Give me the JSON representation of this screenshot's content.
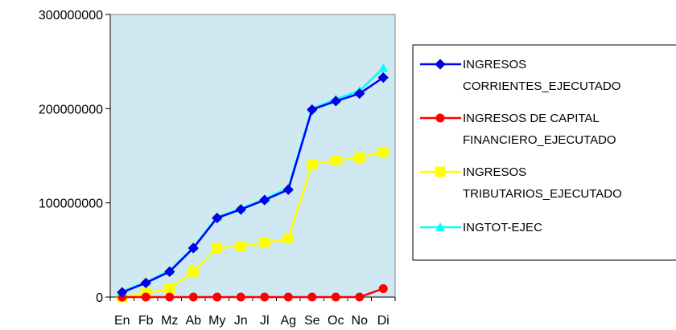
{
  "chart_data": {
    "type": "line",
    "title": "",
    "xlabel": "",
    "ylabel": "",
    "categories": [
      "En",
      "Fb",
      "Mz",
      "Ab",
      "My",
      "Jn",
      "Jl",
      "Ag",
      "Se",
      "Oc",
      "No",
      "Di"
    ],
    "ylim": [
      0,
      300000000
    ],
    "yticks": [
      0,
      100000000,
      200000000,
      300000000
    ],
    "ytick_labels": [
      "0",
      "100000000",
      "200000000",
      "300000000"
    ],
    "grid": false,
    "plot_background": "#cfe8f2",
    "legend_position": "right",
    "series": [
      {
        "legend_lines": [
          "INGRESOS",
          "CORRIENTES_EJECUTADO"
        ],
        "color": "#0000ff",
        "marker": "diamond",
        "values": [
          5000000,
          15000000,
          27000000,
          52000000,
          84000000,
          93000000,
          103000000,
          114000000,
          199000000,
          208000000,
          216000000,
          233000000
        ]
      },
      {
        "legend_lines": [
          "INGRESOS DE CAPITAL",
          "FINANCIERO_EJECUTADO"
        ],
        "color": "#ff0000",
        "marker": "circle",
        "values": [
          0,
          0,
          0,
          0,
          0,
          0,
          0,
          0,
          0,
          0,
          0,
          9000000
        ]
      },
      {
        "legend_lines": [
          "INGRESOS",
          "TRIBUTARIOS_EJECUTADO"
        ],
        "color": "#ffff00",
        "marker": "square",
        "values": [
          0,
          4000000,
          9000000,
          27000000,
          52000000,
          54000000,
          58000000,
          62000000,
          141000000,
          145000000,
          148000000,
          154000000
        ]
      },
      {
        "legend_lines": [
          "INGTOT-EJEC"
        ],
        "color": "#00ffff",
        "marker": "triangle",
        "values": [
          6000000,
          16000000,
          28000000,
          53000000,
          85000000,
          94000000,
          104000000,
          116000000,
          200000000,
          210000000,
          219000000,
          243000000
        ]
      }
    ]
  }
}
